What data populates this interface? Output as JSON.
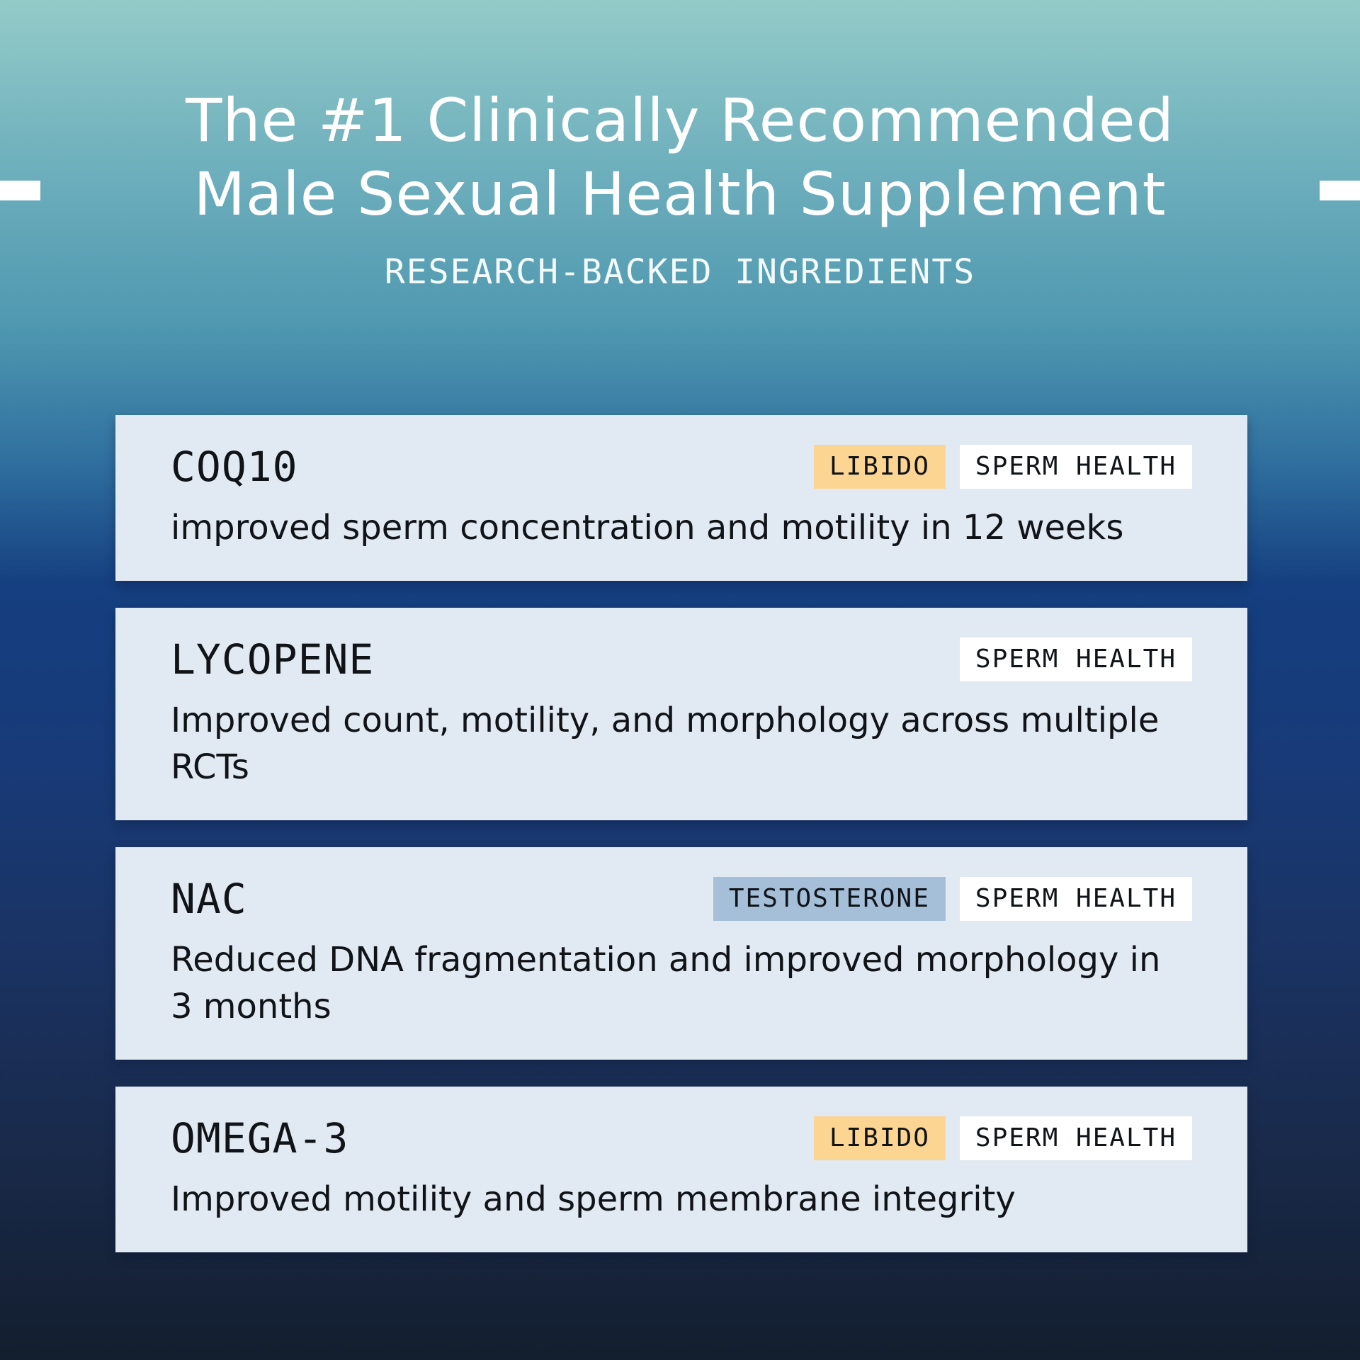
{
  "header": {
    "title_line1": "The #1 Clinically Recommended",
    "title_line2": "Male Sexual Health Supplement",
    "subtitle": "RESEARCH-BACKED INGREDIENTS"
  },
  "cards": [
    {
      "name": "COQ10",
      "tags": [
        "LIBIDO",
        "SPERM HEALTH"
      ],
      "description": "improved sperm concentration and motility in 12 weeks"
    },
    {
      "name": "LYCOPENE",
      "tags": [
        "SPERM HEALTH"
      ],
      "description": "Improved count, motility, and morphology across multiple RCTs"
    },
    {
      "name": "NAC",
      "tags": [
        "TESTOSTERONE",
        "SPERM HEALTH"
      ],
      "description": "Reduced DNA fragmentation and improved morphology in 3 months"
    },
    {
      "name": "OMEGA-3",
      "tags": [
        "LIBIDO",
        "SPERM HEALTH"
      ],
      "description": "Improved motility and sperm membrane integrity"
    }
  ],
  "colors": {
    "card_bg": "#e1e9f2",
    "tag_libido": "#fdd593",
    "tag_testosterone": "#a5bfd8",
    "tag_sperm_health": "#ffffff"
  }
}
